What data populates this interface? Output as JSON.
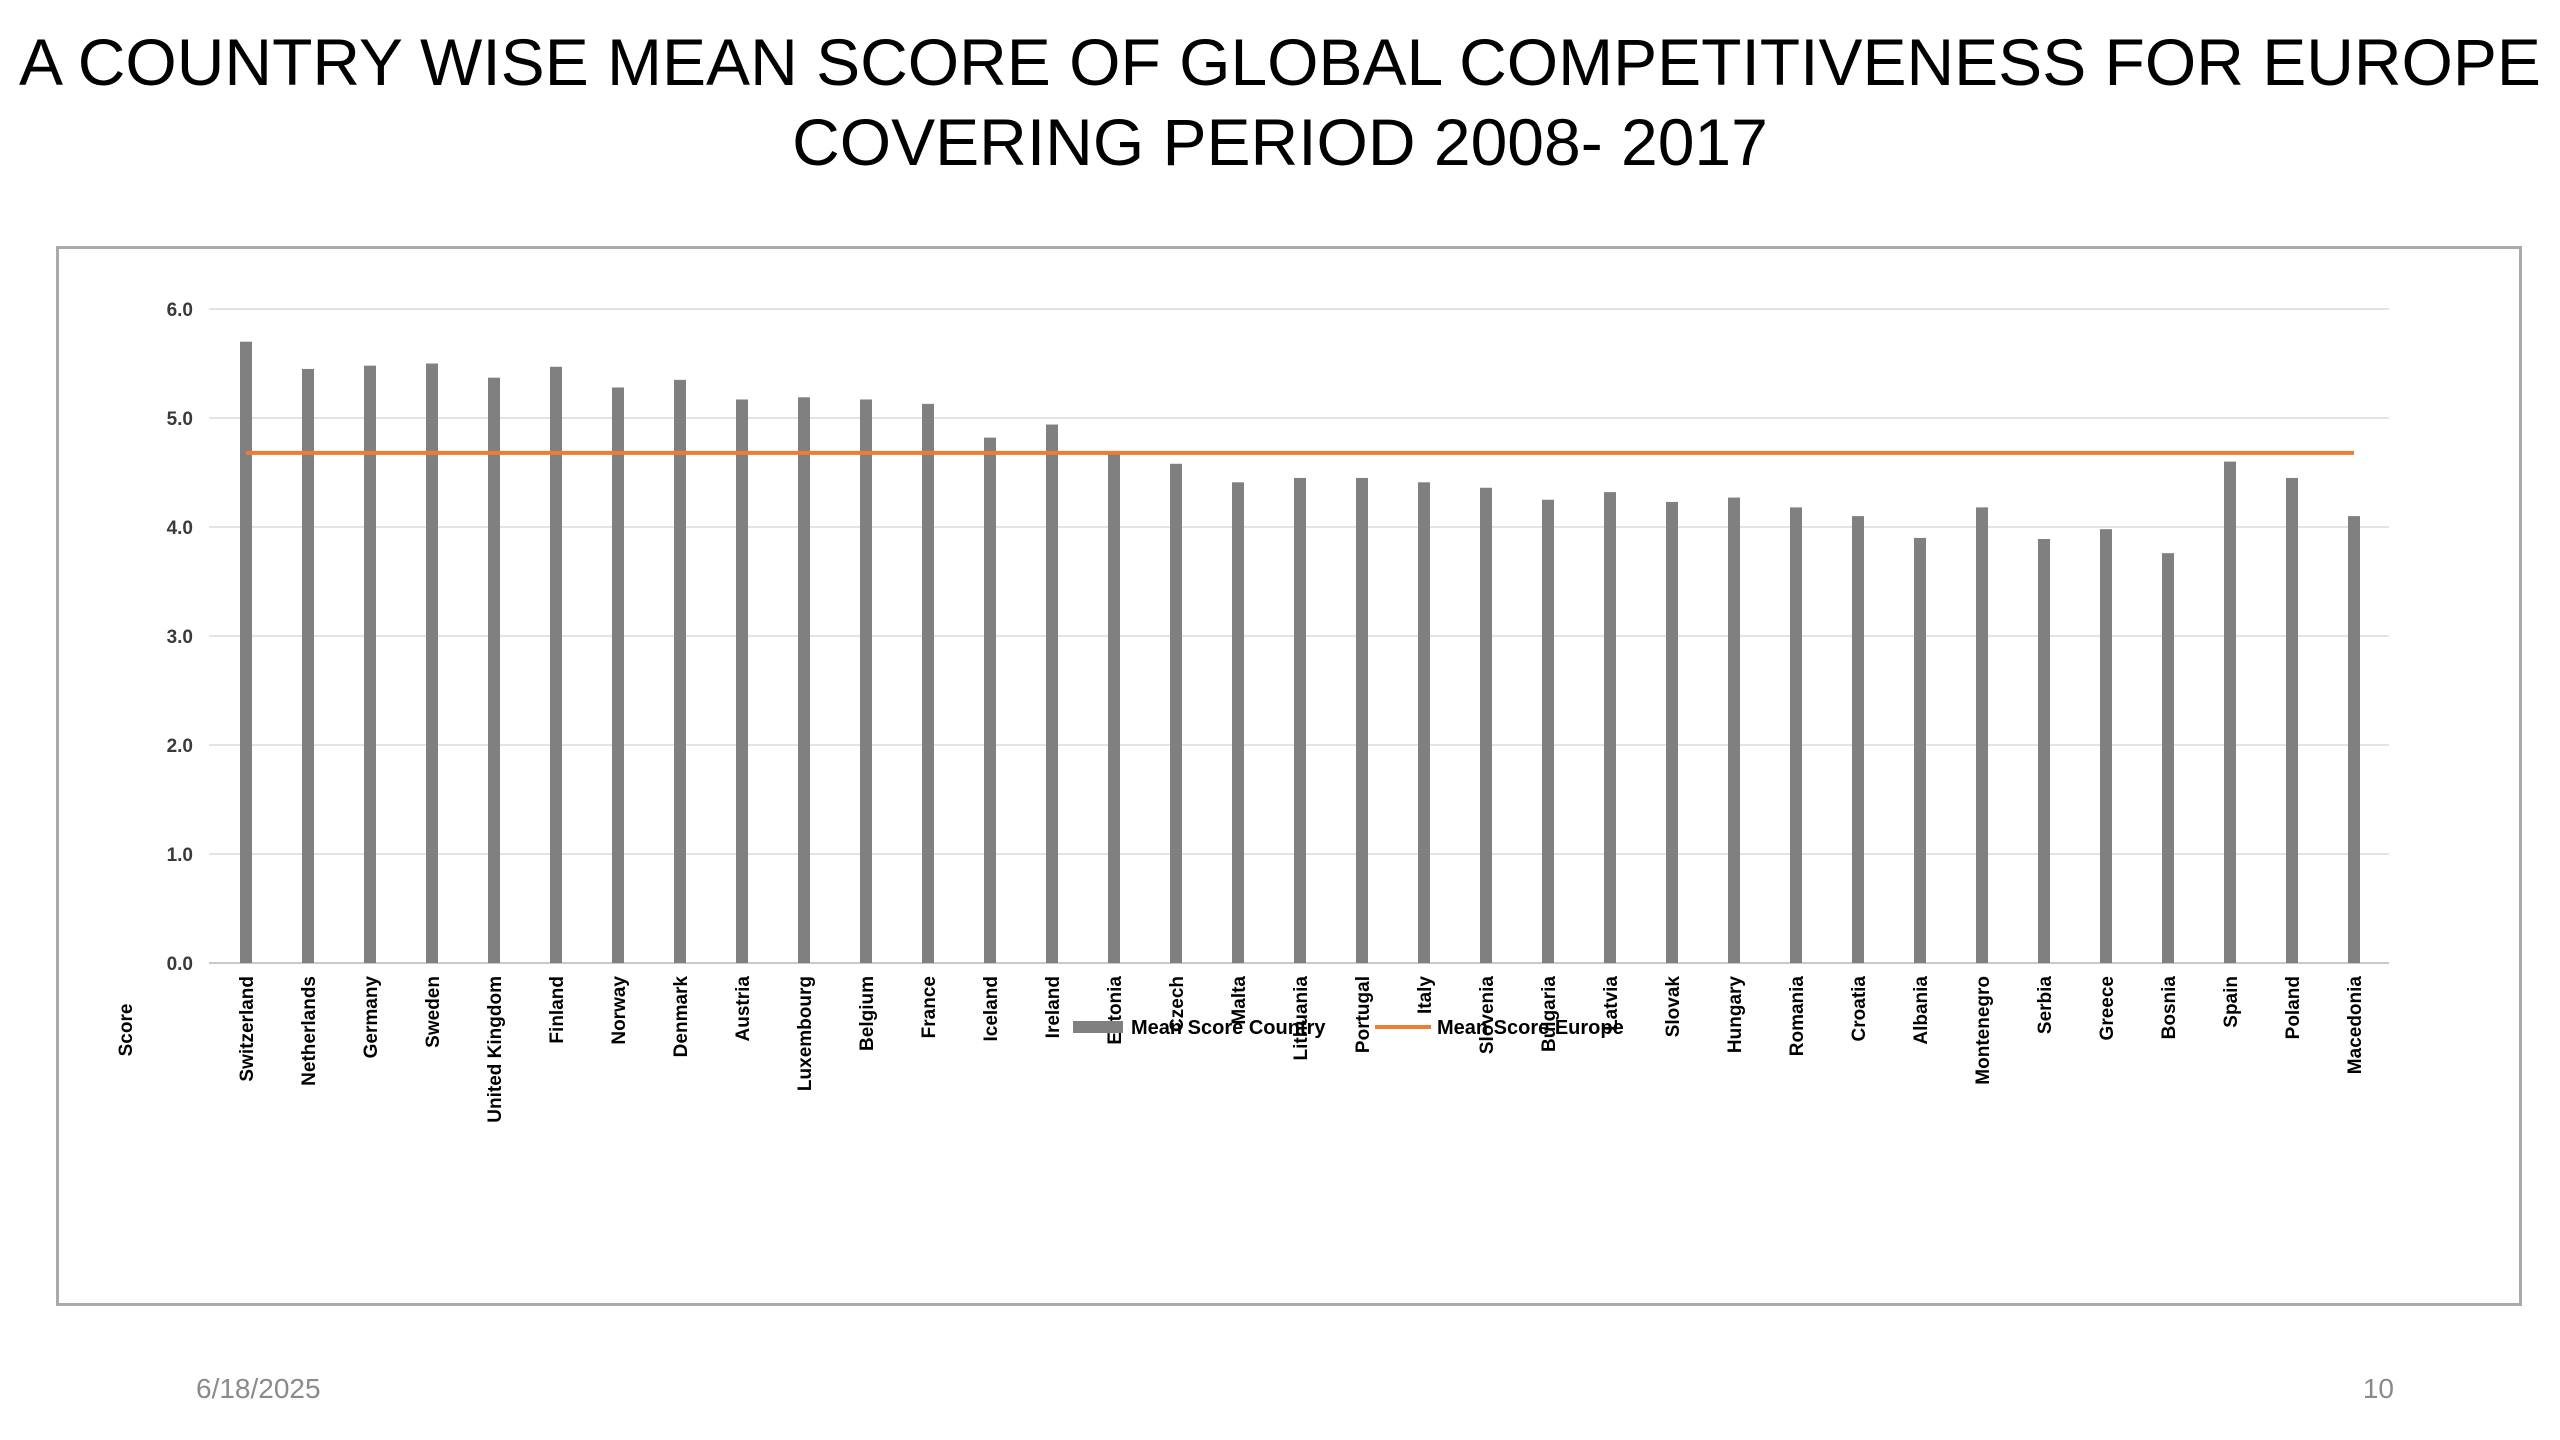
{
  "slide": {
    "title_line1": "A COUNTRY WISE MEAN SCORE OF GLOBAL COMPETITIVENESS FOR EUROPE",
    "title_line2": "COVERING PERIOD 2008- 2017",
    "date": "6/18/2025",
    "page_number": "10"
  },
  "chart_data": {
    "type": "bar",
    "title": "",
    "xlabel": "",
    "ylabel": "Score",
    "ylim": [
      0,
      6
    ],
    "yticks": [
      "0.0",
      "1.0",
      "2.0",
      "3.0",
      "4.0",
      "5.0",
      "6.0"
    ],
    "grid": true,
    "legend_position": "bottom",
    "categories": [
      "Switzerland",
      "Netherlands",
      "Germany",
      "Sweden",
      "United Kingdom",
      "Finland",
      "Norway",
      "Denmark",
      "Austria",
      "Luxembourg",
      "Belgium",
      "France",
      "Iceland",
      "Ireland",
      "Estonia",
      "Czech",
      "Malta",
      "Lithuania",
      "Portugal",
      "Italy",
      "Slovenia",
      "Bulgaria",
      "Latvia",
      "Slovak",
      "Hungary",
      "Romania",
      "Croatia",
      "Albania",
      "Montenegro",
      "Serbia",
      "Greece",
      "Bosnia",
      "Spain",
      "Poland",
      "Macedonia"
    ],
    "series": [
      {
        "name": "Mean Score Country",
        "type": "bar",
        "color": "#808080",
        "values": [
          5.7,
          5.45,
          5.48,
          5.5,
          5.37,
          5.47,
          5.28,
          5.35,
          5.17,
          5.19,
          5.17,
          5.13,
          4.82,
          4.94,
          4.67,
          4.58,
          4.41,
          4.45,
          4.45,
          4.41,
          4.36,
          4.25,
          4.32,
          4.23,
          4.27,
          4.18,
          4.1,
          3.9,
          4.18,
          3.89,
          3.98,
          3.76,
          4.6,
          4.45,
          4.1
        ]
      },
      {
        "name": "Mean Score Europe",
        "type": "line",
        "color": "#ed7d31",
        "values": [
          4.68,
          4.68,
          4.68,
          4.68,
          4.68,
          4.68,
          4.68,
          4.68,
          4.68,
          4.68,
          4.68,
          4.68,
          4.68,
          4.68,
          4.68,
          4.68,
          4.68,
          4.68,
          4.68,
          4.68,
          4.68,
          4.68,
          4.68,
          4.68,
          4.68,
          4.68,
          4.68,
          4.68,
          4.68,
          4.68,
          4.68,
          4.68,
          4.68,
          4.68,
          4.68
        ]
      }
    ]
  }
}
